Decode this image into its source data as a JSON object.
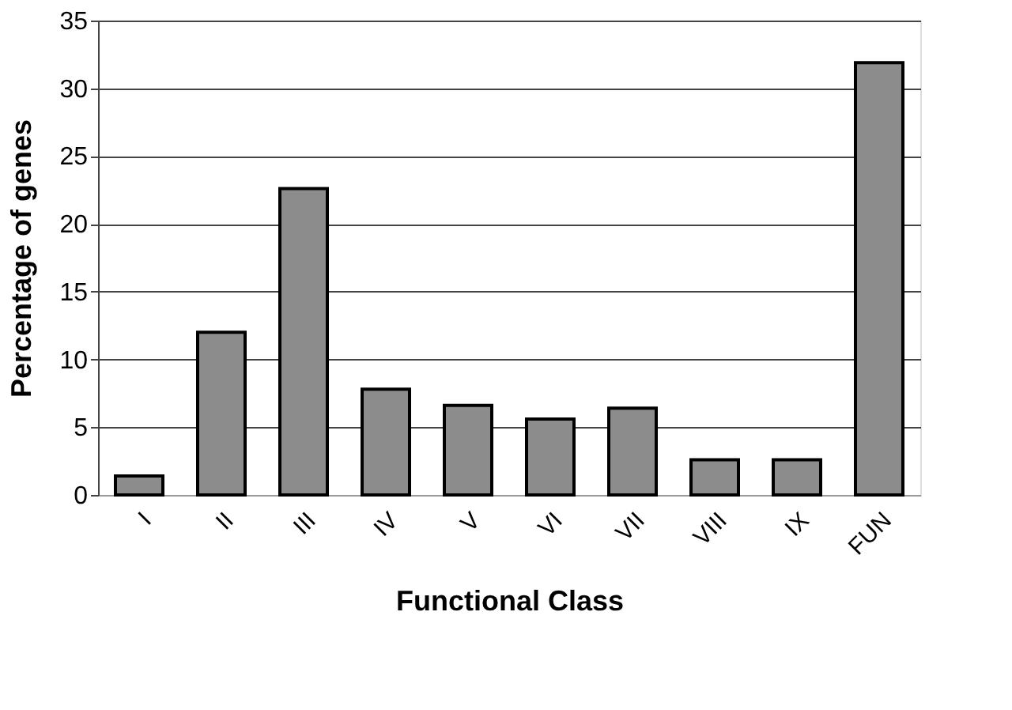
{
  "chart_data": {
    "type": "bar",
    "xlabel": "Functional Class",
    "ylabel": "Percentage of genes",
    "categories": [
      "I",
      "II",
      "III",
      "IV",
      "V",
      "VI",
      "VII",
      "VIII",
      "IX",
      "FUN"
    ],
    "values": [
      1.4,
      12.0,
      22.6,
      7.8,
      6.6,
      5.6,
      6.4,
      2.6,
      2.6,
      31.9
    ],
    "color": "#8c8c8c",
    "ylim": [
      0,
      35
    ],
    "yticks": [
      0,
      5,
      10,
      15,
      20,
      25,
      30,
      35
    ],
    "grid": "y"
  }
}
